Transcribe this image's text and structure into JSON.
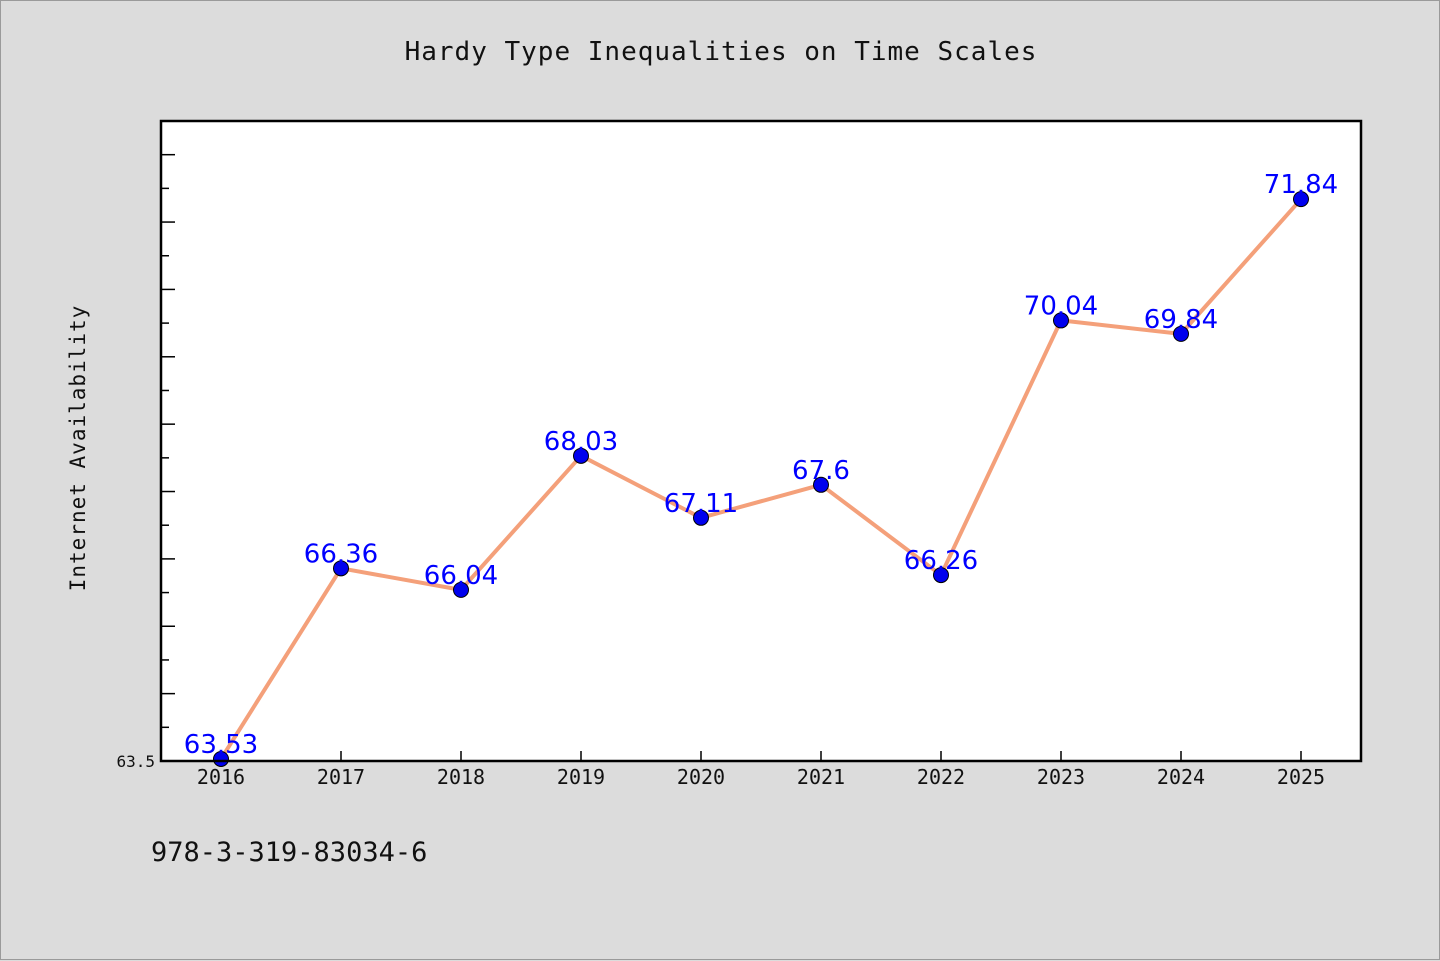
{
  "chart_data": {
    "type": "line",
    "title": "Hardy Type Inequalities on Time Scales",
    "xlabel": "",
    "ylabel": "Internet Availability",
    "categories": [
      "2016",
      "2017",
      "2018",
      "2019",
      "2020",
      "2021",
      "2022",
      "2023",
      "2024",
      "2025"
    ],
    "series": [
      {
        "values": [
          63.53,
          66.36,
          66.04,
          68.03,
          67.11,
          67.6,
          66.26,
          70.04,
          69.84,
          71.84
        ],
        "labels": [
          "63.53",
          "66.36",
          "66.04",
          "68.03",
          "67.11",
          "67.6",
          "66.26",
          "70.04",
          "69.84",
          "71.84"
        ]
      }
    ],
    "ylim": [
      63.5,
      73.0
    ],
    "yticks_labeled": [
      "63.5"
    ],
    "ytick_minor_step": 0.5,
    "grid": false,
    "colors": {
      "line": "#f4a07a",
      "marker": "#0000ee",
      "label": "#0000ff",
      "plot_bg": "#ffffff",
      "figure_bg": "#dcdcdc"
    }
  },
  "footer": {
    "isbn": "978-3-319-83034-6"
  }
}
